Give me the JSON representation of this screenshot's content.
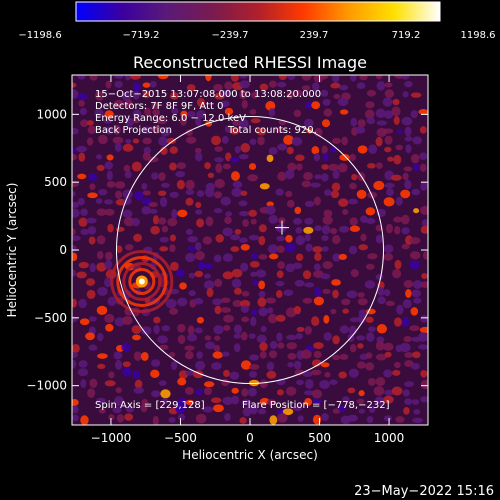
{
  "chart_data": {
    "type": "heatmap",
    "title": "Reconstructed RHESSI Image",
    "xlabel": "Heliocentric X (arcsec)",
    "ylabel": "Heliocentric Y (arcsec)",
    "xlim": [
      -1280,
      1280
    ],
    "ylim": [
      -1290,
      1290
    ],
    "xticks": [
      -1000,
      -500,
      0,
      500,
      1000
    ],
    "yticks": [
      1000,
      500,
      0,
      -500,
      -1000
    ],
    "xtick_labels": [
      "−1000",
      "−500",
      "0",
      "500",
      "1000"
    ],
    "ytick_labels": [
      "1000",
      "500",
      "0",
      "−500",
      "−1000"
    ],
    "colorbar": {
      "range": [
        -1198.6,
        1198.6
      ],
      "tick_labels": [
        "−1198.6",
        "−719.2",
        "−239.7",
        "239.7",
        "719.2",
        "1198.6"
      ],
      "colormap": [
        "#0000ff",
        "#3a00a0",
        "#5a1a78",
        "#7a1a50",
        "#b0202a",
        "#ff3a00",
        "#ff9a00",
        "#ffe000",
        "#ffffff"
      ]
    },
    "solar_disk": {
      "center": [
        0,
        0
      ],
      "radius": 960,
      "color": "#ffffff"
    },
    "disk_center_marker": [
      230,
      165
    ],
    "source": {
      "position": [
        -778,
        -232
      ],
      "brightness": 1198.6
    },
    "annotations": {
      "time": "15−Oct−2015 13:07:08.000 to 13:08:20.000",
      "detectors": "Detectors: 7F 8F 9F, Att 0",
      "energy": "Energy Range: 6.0 − 12.0 keV",
      "method": "Back Projection",
      "counts": "Total counts: 920.",
      "spin_axis": "Spin Axis = [229,128]",
      "flare_position": "Flare Position = [−778,−232]"
    }
  },
  "footer": {
    "date": "23−May−2022 15:16"
  }
}
